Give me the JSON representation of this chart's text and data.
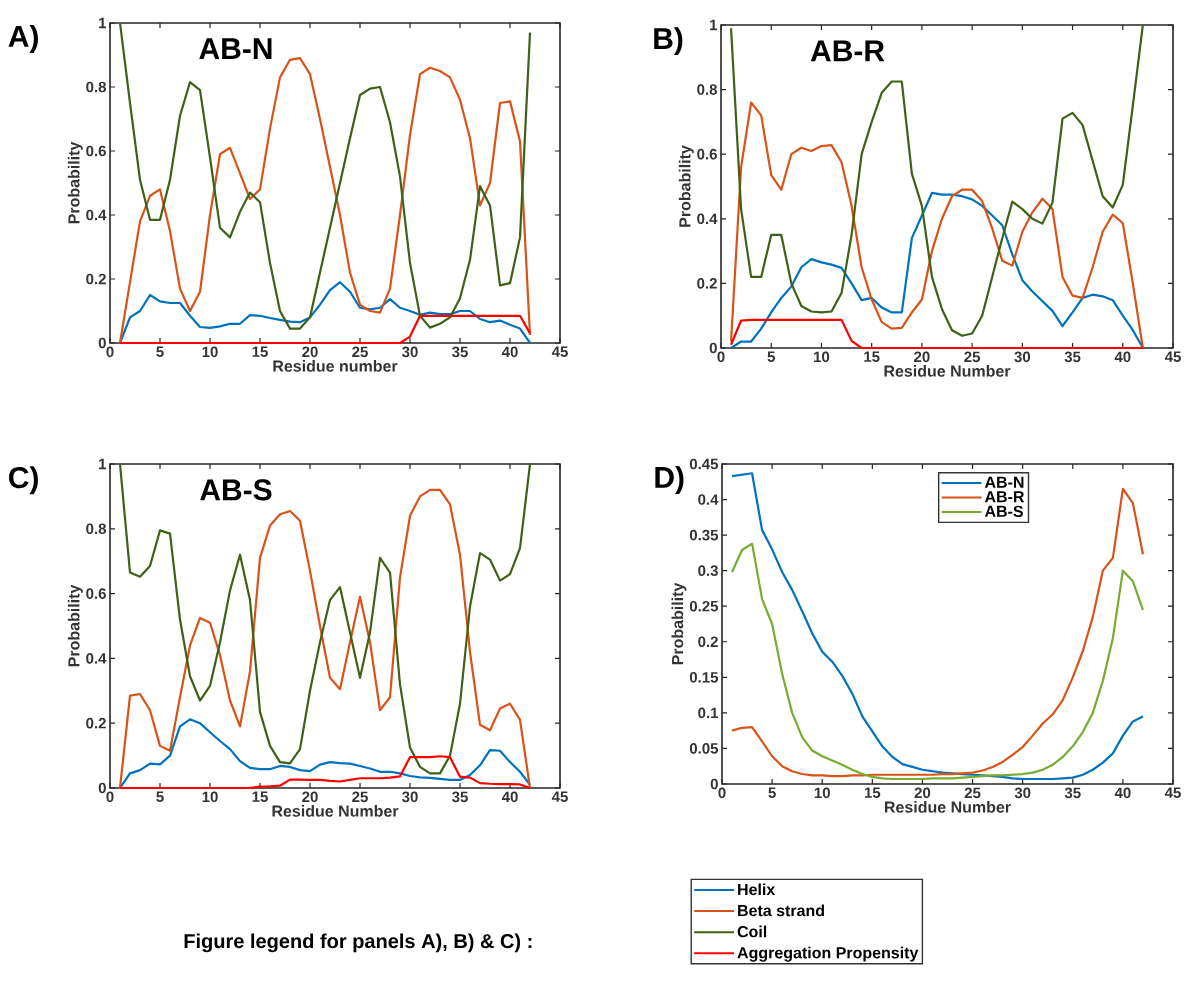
{
  "chart_data": [
    {
      "type": "line",
      "title": "AB-N",
      "xlabel": "Residue number",
      "ylabel": "Probability",
      "annotations": [
        "A)"
      ],
      "xlim": [
        0,
        45
      ],
      "ylim": [
        0,
        1
      ],
      "xticks": [
        0,
        5,
        10,
        15,
        20,
        25,
        30,
        35,
        40,
        45
      ],
      "yticks": [
        0,
        0.2,
        0.4,
        0.6,
        0.8,
        1
      ],
      "marker": "none",
      "line_style": "solid",
      "x": [
        1,
        2,
        3,
        4,
        5,
        6,
        7,
        8,
        9,
        10,
        11,
        12,
        13,
        14,
        15,
        16,
        17,
        18,
        19,
        20,
        21,
        22,
        23,
        24,
        25,
        26,
        27,
        28,
        29,
        30,
        31,
        32,
        33,
        34,
        35,
        36,
        37,
        38,
        39,
        40,
        41,
        42
      ],
      "series": [
        {
          "color": "#0072bd",
          "values": [
            0.0,
            0.08,
            0.1,
            0.15,
            0.13,
            0.125,
            0.125,
            0.085,
            0.05,
            0.047,
            0.052,
            0.06,
            0.06,
            0.087,
            0.085,
            0.078,
            0.072,
            0.067,
            0.065,
            0.08,
            0.12,
            0.165,
            0.19,
            0.16,
            0.11,
            0.105,
            0.11,
            0.137,
            0.11,
            0.1,
            0.088,
            0.095,
            0.09,
            0.09,
            0.1,
            0.1,
            0.075,
            0.065,
            0.07,
            0.057,
            0.045,
            0.0
          ]
        },
        {
          "color": "#d95319",
          "values": [
            0.0,
            0.19,
            0.38,
            0.46,
            0.48,
            0.35,
            0.17,
            0.1,
            0.16,
            0.4,
            0.59,
            0.61,
            0.53,
            0.45,
            0.48,
            0.67,
            0.83,
            0.885,
            0.89,
            0.84,
            0.7,
            0.55,
            0.4,
            0.22,
            0.12,
            0.1,
            0.095,
            0.17,
            0.4,
            0.65,
            0.84,
            0.86,
            0.85,
            0.83,
            0.76,
            0.64,
            0.43,
            0.5,
            0.75,
            0.755,
            0.63,
            0.025
          ]
        },
        {
          "color": "#3f6116",
          "values": [
            1.0,
            0.75,
            0.51,
            0.385,
            0.385,
            0.51,
            0.71,
            0.815,
            0.79,
            0.58,
            0.36,
            0.33,
            0.41,
            0.47,
            0.44,
            0.25,
            0.1,
            0.045,
            0.045,
            0.08,
            0.22,
            0.36,
            0.5,
            0.64,
            0.775,
            0.795,
            0.8,
            0.69,
            0.52,
            0.25,
            0.085,
            0.048,
            0.06,
            0.08,
            0.14,
            0.26,
            0.49,
            0.43,
            0.18,
            0.187,
            0.33,
            0.97
          ]
        },
        {
          "color": "#ff0000",
          "values": [
            0,
            0,
            0,
            0,
            0,
            0,
            0,
            0,
            0,
            0,
            0,
            0,
            0,
            0,
            0,
            0,
            0,
            0,
            0,
            0,
            0,
            0,
            0,
            0,
            0,
            0,
            0,
            0,
            0,
            0.02,
            0.085,
            0.085,
            0.085,
            0.085,
            0.085,
            0.085,
            0.085,
            0.085,
            0.085,
            0.085,
            0.085,
            0.03
          ]
        }
      ]
    },
    {
      "type": "line",
      "title": "AB-R",
      "xlabel": "Residue Number",
      "ylabel": "Probability",
      "annotations": [
        "B)"
      ],
      "xlim": [
        0,
        45
      ],
      "ylim": [
        0,
        1
      ],
      "xticks": [
        0,
        5,
        10,
        15,
        20,
        25,
        30,
        35,
        40,
        45
      ],
      "yticks": [
        0,
        0.2,
        0.4,
        0.6,
        0.8,
        1
      ],
      "marker": "none",
      "line_style": "solid",
      "x": [
        1,
        2,
        3,
        4,
        5,
        6,
        7,
        8,
        9,
        10,
        11,
        12,
        13,
        14,
        15,
        16,
        17,
        18,
        19,
        20,
        21,
        22,
        23,
        24,
        25,
        26,
        27,
        28,
        29,
        30,
        31,
        32,
        33,
        34,
        35,
        36,
        37,
        38,
        39,
        40,
        41,
        42
      ],
      "series": [
        {
          "color": "#0072bd",
          "values": [
            0.0,
            0.02,
            0.02,
            0.06,
            0.11,
            0.155,
            0.19,
            0.25,
            0.275,
            0.265,
            0.258,
            0.248,
            0.2,
            0.148,
            0.155,
            0.125,
            0.11,
            0.11,
            0.34,
            0.41,
            0.48,
            0.475,
            0.475,
            0.47,
            0.46,
            0.44,
            0.41,
            0.38,
            0.29,
            0.21,
            0.175,
            0.145,
            0.115,
            0.068,
            0.11,
            0.155,
            0.165,
            0.16,
            0.148,
            0.1,
            0.055,
            0.0
          ]
        },
        {
          "color": "#d95319",
          "values": [
            0.02,
            0.56,
            0.76,
            0.72,
            0.535,
            0.49,
            0.6,
            0.62,
            0.61,
            0.625,
            0.628,
            0.575,
            0.44,
            0.25,
            0.15,
            0.08,
            0.06,
            0.062,
            0.11,
            0.15,
            0.3,
            0.4,
            0.47,
            0.49,
            0.49,
            0.455,
            0.37,
            0.27,
            0.255,
            0.36,
            0.42,
            0.462,
            0.43,
            0.22,
            0.162,
            0.155,
            0.25,
            0.36,
            0.413,
            0.387,
            0.2,
            0.0
          ]
        },
        {
          "color": "#3f6116",
          "values": [
            0.99,
            0.43,
            0.22,
            0.22,
            0.35,
            0.35,
            0.2,
            0.13,
            0.113,
            0.11,
            0.113,
            0.17,
            0.35,
            0.6,
            0.7,
            0.79,
            0.825,
            0.825,
            0.54,
            0.44,
            0.22,
            0.12,
            0.055,
            0.038,
            0.045,
            0.1,
            0.22,
            0.34,
            0.453,
            0.43,
            0.4,
            0.385,
            0.45,
            0.71,
            0.728,
            0.69,
            0.58,
            0.47,
            0.435,
            0.505,
            0.75,
            1.0
          ]
        },
        {
          "color": "#ff0000",
          "values": [
            0.01,
            0.085,
            0.087,
            0.087,
            0.087,
            0.087,
            0.087,
            0.087,
            0.087,
            0.087,
            0.087,
            0.087,
            0.022,
            0,
            0,
            0,
            0,
            0,
            0,
            0,
            0,
            0,
            0,
            0,
            0,
            0,
            0,
            0,
            0,
            0,
            0,
            0,
            0,
            0,
            0,
            0,
            0,
            0,
            0,
            0,
            0,
            0
          ]
        }
      ]
    },
    {
      "type": "line",
      "title": "AB-S",
      "xlabel": "Residue Number",
      "ylabel": "Probability",
      "annotations": [
        "C)",
        "Figure legend for panels A), B) & C) :"
      ],
      "xlim": [
        0,
        45
      ],
      "ylim": [
        0,
        1
      ],
      "xticks": [
        0,
        5,
        10,
        15,
        20,
        25,
        30,
        35,
        40,
        45
      ],
      "yticks": [
        0,
        0.2,
        0.4,
        0.6,
        0.8,
        1
      ],
      "marker": "none",
      "line_style": "solid",
      "legend": "bottom",
      "x": [
        1,
        2,
        3,
        4,
        5,
        6,
        7,
        8,
        9,
        10,
        11,
        12,
        13,
        14,
        15,
        16,
        17,
        18,
        19,
        20,
        21,
        22,
        23,
        24,
        25,
        26,
        27,
        28,
        29,
        30,
        31,
        32,
        33,
        34,
        35,
        36,
        37,
        38,
        39,
        40,
        41,
        42
      ],
      "series": [
        {
          "name": "Helix",
          "color": "#0072bd",
          "values": [
            0.0,
            0.045,
            0.055,
            0.075,
            0.073,
            0.1,
            0.19,
            0.212,
            0.2,
            0.172,
            0.145,
            0.12,
            0.083,
            0.062,
            0.058,
            0.058,
            0.068,
            0.065,
            0.055,
            0.052,
            0.072,
            0.08,
            0.077,
            0.075,
            0.068,
            0.06,
            0.05,
            0.05,
            0.045,
            0.037,
            0.033,
            0.031,
            0.028,
            0.025,
            0.025,
            0.04,
            0.07,
            0.117,
            0.115,
            0.08,
            0.05,
            0.01
          ]
        },
        {
          "name": "Beta strand",
          "color": "#d95319",
          "values": [
            0.0,
            0.285,
            0.29,
            0.24,
            0.13,
            0.115,
            0.28,
            0.44,
            0.525,
            0.51,
            0.41,
            0.27,
            0.19,
            0.36,
            0.71,
            0.81,
            0.845,
            0.855,
            0.825,
            0.67,
            0.5,
            0.34,
            0.305,
            0.45,
            0.59,
            0.45,
            0.24,
            0.28,
            0.65,
            0.84,
            0.9,
            0.92,
            0.92,
            0.875,
            0.72,
            0.42,
            0.195,
            0.178,
            0.245,
            0.26,
            0.21,
            0.0
          ]
        },
        {
          "name": "Coil",
          "color": "#3f6116",
          "values": [
            1.0,
            0.665,
            0.652,
            0.685,
            0.795,
            0.785,
            0.52,
            0.345,
            0.27,
            0.315,
            0.45,
            0.61,
            0.72,
            0.58,
            0.235,
            0.13,
            0.08,
            0.076,
            0.12,
            0.3,
            0.45,
            0.58,
            0.62,
            0.48,
            0.34,
            0.48,
            0.71,
            0.665,
            0.32,
            0.125,
            0.065,
            0.045,
            0.045,
            0.1,
            0.26,
            0.56,
            0.725,
            0.705,
            0.64,
            0.66,
            0.74,
            1.0
          ]
        },
        {
          "name": "Aggregation Propensity",
          "color": "#ff0000",
          "values": [
            0,
            0,
            0,
            0,
            0,
            0,
            0,
            0,
            0,
            0,
            0,
            0,
            0,
            0,
            0.004,
            0.005,
            0.007,
            0.026,
            0.026,
            0.025,
            0.025,
            0.022,
            0.02,
            0.025,
            0.03,
            0.03,
            0.03,
            0.032,
            0.036,
            0.095,
            0.095,
            0.095,
            0.098,
            0.095,
            0.035,
            0.032,
            0.015,
            0.013,
            0.012,
            0.012,
            0.011,
            0.0
          ]
        }
      ]
    },
    {
      "type": "line",
      "xlabel": "Residue Number",
      "ylabel": "Probability",
      "annotations": [
        "D)"
      ],
      "xlim": [
        0,
        45
      ],
      "ylim": [
        0,
        0.45
      ],
      "xticks": [
        0,
        5,
        10,
        15,
        20,
        25,
        30,
        35,
        40,
        45
      ],
      "yticks": [
        0,
        0.05,
        0.1,
        0.15,
        0.2,
        0.25,
        0.3,
        0.35,
        0.4,
        0.45
      ],
      "marker": "none",
      "line_style": "solid",
      "legend": "top",
      "x": [
        1,
        2,
        3,
        4,
        5,
        6,
        7,
        8,
        9,
        10,
        11,
        12,
        13,
        14,
        15,
        16,
        17,
        18,
        19,
        20,
        21,
        22,
        23,
        24,
        25,
        26,
        27,
        28,
        29,
        30,
        31,
        32,
        33,
        34,
        35,
        36,
        37,
        38,
        39,
        40,
        41,
        42
      ],
      "series": [
        {
          "name": "AB-N",
          "color": "#0072bd",
          "values": [
            0.433,
            0.435,
            0.437,
            0.357,
            0.33,
            0.298,
            0.273,
            0.243,
            0.212,
            0.186,
            0.172,
            0.152,
            0.127,
            0.095,
            0.074,
            0.053,
            0.038,
            0.028,
            0.024,
            0.02,
            0.018,
            0.016,
            0.015,
            0.014,
            0.013,
            0.012,
            0.011,
            0.01,
            0.008,
            0.007,
            0.007,
            0.007,
            0.007,
            0.008,
            0.009,
            0.013,
            0.02,
            0.03,
            0.043,
            0.068,
            0.088,
            0.095
          ]
        },
        {
          "name": "AB-R",
          "color": "#d95319",
          "values": [
            0.075,
            0.079,
            0.08,
            0.06,
            0.039,
            0.025,
            0.018,
            0.014,
            0.012,
            0.012,
            0.011,
            0.011,
            0.012,
            0.012,
            0.013,
            0.013,
            0.013,
            0.013,
            0.013,
            0.013,
            0.013,
            0.014,
            0.014,
            0.015,
            0.016,
            0.019,
            0.024,
            0.031,
            0.041,
            0.052,
            0.068,
            0.085,
            0.098,
            0.118,
            0.15,
            0.187,
            0.235,
            0.3,
            0.318,
            0.415,
            0.395,
            0.323
          ]
        },
        {
          "name": "AB-S",
          "color": "#77ac30",
          "values": [
            0.298,
            0.329,
            0.338,
            0.26,
            0.225,
            0.155,
            0.1,
            0.066,
            0.047,
            0.039,
            0.033,
            0.027,
            0.02,
            0.014,
            0.01,
            0.008,
            0.007,
            0.007,
            0.007,
            0.007,
            0.008,
            0.008,
            0.008,
            0.009,
            0.01,
            0.011,
            0.012,
            0.012,
            0.013,
            0.014,
            0.016,
            0.02,
            0.027,
            0.038,
            0.053,
            0.073,
            0.1,
            0.145,
            0.205,
            0.3,
            0.285,
            0.245
          ]
        }
      ]
    }
  ]
}
